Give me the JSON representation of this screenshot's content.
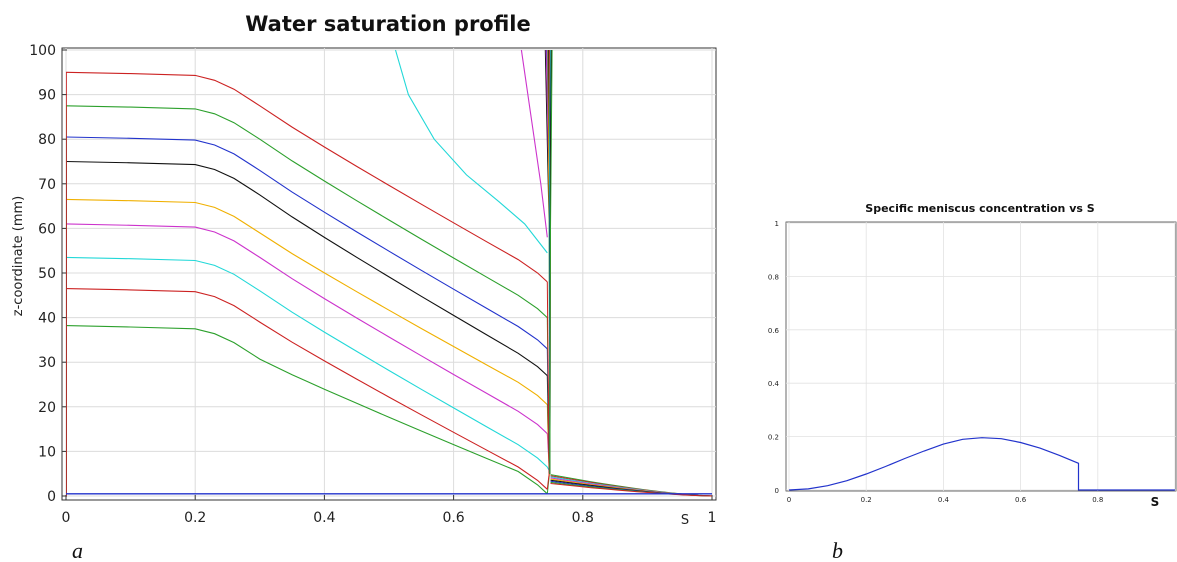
{
  "panels": [
    {
      "id": "a",
      "label": "a",
      "chart_data": {
        "type": "line",
        "title": "Water saturation profile",
        "xlabel": "S",
        "ylabel": "z-coordinate (mm)",
        "xlim": [
          0,
          1
        ],
        "ylim": [
          0,
          100
        ],
        "x_ticks": [
          0,
          0.2,
          0.4,
          0.6,
          0.8,
          1
        ],
        "y_ticks": [
          0,
          10,
          20,
          30,
          40,
          50,
          60,
          70,
          80,
          90,
          100
        ],
        "grid": true,
        "legend": "none",
        "series": [
          {
            "color": "#2ca02c",
            "plateau": 38.2,
            "tail": 0.5
          },
          {
            "color": "#cc2222",
            "plateau": 46.5,
            "tail": 1.5
          },
          {
            "color": "#22d8d8",
            "plateau": 53.5,
            "tail": 6.5
          },
          {
            "color": "#cc33cc",
            "plateau": 61.0,
            "tail": 14.0
          },
          {
            "color": "#f0b000",
            "plateau": 66.5,
            "tail": 20.5
          },
          {
            "color": "#111111",
            "plateau": 75.0,
            "tail": 27.0
          },
          {
            "color": "#2233cc",
            "plateau": 80.5,
            "tail": 33.0
          },
          {
            "color": "#2ca02c",
            "plateau": 87.5,
            "tail": 40.0
          },
          {
            "color": "#cc2222",
            "plateau": 95.0,
            "tail": 48.0
          }
        ],
        "extra_curves": [
          {
            "color": "#22d8d8",
            "points": [
              [
                0.51,
                100
              ],
              [
                0.53,
                90
              ],
              [
                0.57,
                80
              ],
              [
                0.62,
                72
              ],
              [
                0.67,
                66
              ],
              [
                0.71,
                61
              ],
              [
                0.745,
                54.5
              ]
            ]
          },
          {
            "color": "#cc33cc",
            "points": [
              [
                0.705,
                100
              ],
              [
                0.72,
                85
              ],
              [
                0.735,
                70
              ],
              [
                0.745,
                58
              ]
            ]
          }
        ],
        "baseline": {
          "color": "#2233cc",
          "y": 0.5
        }
      }
    },
    {
      "id": "b",
      "label": "b",
      "chart_data": {
        "type": "line",
        "title": "Specific meniscus concentration vs S",
        "xlabel": "S",
        "ylabel": "",
        "xlim": [
          0,
          1
        ],
        "ylim": [
          0,
          1
        ],
        "x_ticks": [
          "0",
          "0.2",
          "0.4",
          "0.6",
          "0.8"
        ],
        "y_ticks": [
          "0",
          "0.2",
          "0.4",
          "0.6",
          "0.8",
          "1"
        ],
        "grid": true,
        "legend": "none",
        "series": [
          {
            "color": "#2233cc",
            "x": [
              0,
              0.05,
              0.1,
              0.15,
              0.2,
              0.25,
              0.3,
              0.35,
              0.4,
              0.45,
              0.5,
              0.55,
              0.6,
              0.65,
              0.7,
              0.75,
              0.75,
              1.0
            ],
            "y": [
              0,
              0.004,
              0.016,
              0.035,
              0.06,
              0.088,
              0.118,
              0.146,
              0.172,
              0.19,
              0.196,
              0.192,
              0.178,
              0.157,
              0.13,
              0.1,
              0,
              0
            ]
          }
        ]
      }
    }
  ]
}
